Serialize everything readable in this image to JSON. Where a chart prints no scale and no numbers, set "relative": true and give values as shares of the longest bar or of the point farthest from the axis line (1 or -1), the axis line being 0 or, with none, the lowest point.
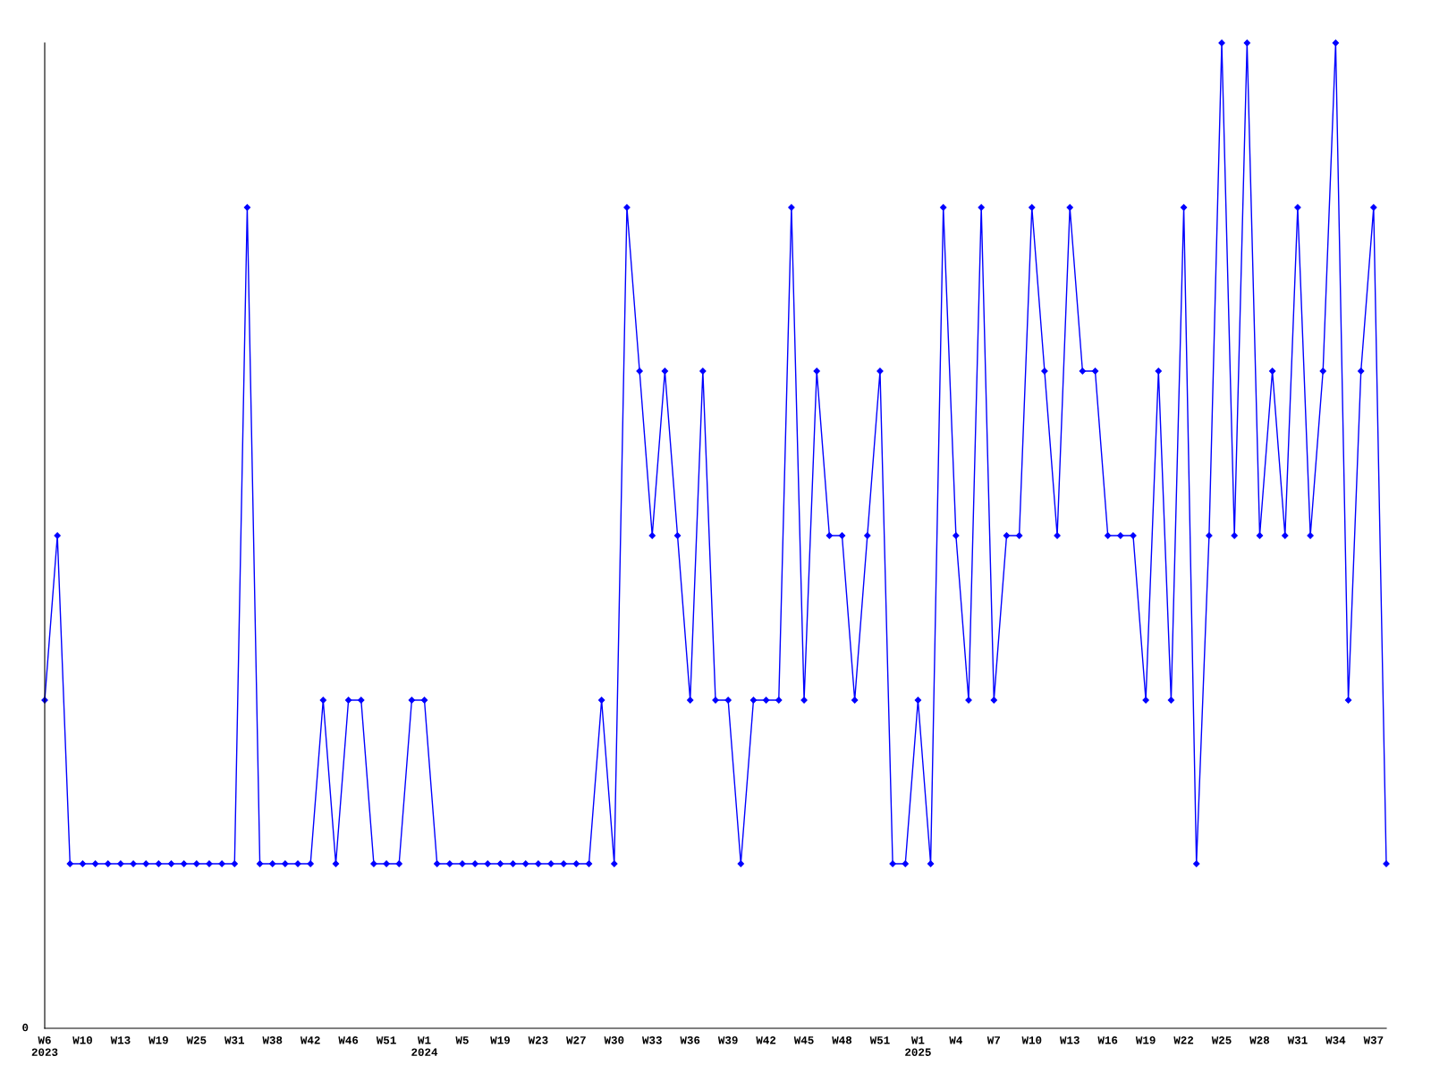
{
  "chart_data": {
    "type": "line",
    "relative": true,
    "color": "#0000ff",
    "marker": "diamond",
    "line_style": "solid",
    "grid": false,
    "legend": false,
    "categories": [
      "W6\n2023",
      null,
      null,
      "W10",
      null,
      null,
      "W13",
      null,
      null,
      "W19",
      null,
      null,
      "W25",
      null,
      null,
      "W31",
      null,
      null,
      "W38",
      null,
      null,
      "W42",
      null,
      null,
      "W46",
      null,
      null,
      "W51",
      null,
      null,
      "W1\n2024",
      null,
      null,
      "W5",
      null,
      null,
      "W19",
      null,
      null,
      "W23",
      null,
      null,
      "W27",
      null,
      null,
      "W30",
      null,
      null,
      "W33",
      null,
      null,
      "W36",
      null,
      null,
      "W39",
      null,
      null,
      "W42",
      null,
      null,
      "W45",
      null,
      null,
      "W48",
      null,
      null,
      "W51",
      null,
      null,
      "W1\n2025",
      null,
      null,
      "W4",
      null,
      null,
      "W7",
      null,
      null,
      "W10",
      null,
      null,
      "W13",
      null,
      null,
      "W16",
      null,
      null,
      "W19",
      null,
      null,
      "W22",
      null,
      null,
      "W25",
      null,
      null,
      "W28",
      null,
      null,
      "W31",
      null,
      null,
      "W34",
      null,
      null,
      "W37",
      null
    ],
    "values": [
      0.333,
      0.5,
      0.167,
      0.167,
      0.167,
      0.167,
      0.167,
      0.167,
      0.167,
      0.167,
      0.167,
      0.167,
      0.167,
      0.167,
      0.167,
      0.167,
      0.833,
      0.167,
      0.167,
      0.167,
      0.167,
      0.167,
      0.333,
      0.167,
      0.333,
      0.333,
      0.167,
      0.167,
      0.167,
      0.333,
      0.333,
      0.167,
      0.167,
      0.167,
      0.167,
      0.167,
      0.167,
      0.167,
      0.167,
      0.167,
      0.167,
      0.167,
      0.167,
      0.167,
      0.333,
      0.167,
      0.833,
      0.667,
      0.5,
      0.667,
      0.5,
      0.333,
      0.667,
      0.333,
      0.333,
      0.167,
      0.333,
      0.333,
      0.333,
      0.833,
      0.333,
      0.667,
      0.5,
      0.5,
      0.333,
      0.5,
      0.667,
      0.167,
      0.167,
      0.333,
      0.167,
      0.833,
      0.5,
      0.333,
      0.833,
      0.333,
      0.5,
      0.5,
      0.833,
      0.667,
      0.5,
      0.833,
      0.667,
      0.667,
      0.5,
      0.5,
      0.5,
      0.333,
      0.667,
      0.333,
      0.833,
      0.167,
      0.5,
      1,
      0.5,
      1,
      0.5,
      0.667,
      0.5,
      0.833,
      0.5,
      0.667,
      1,
      0.333,
      0.667,
      0.833,
      0.167
    ],
    "annotations": [
      "0"
    ]
  }
}
